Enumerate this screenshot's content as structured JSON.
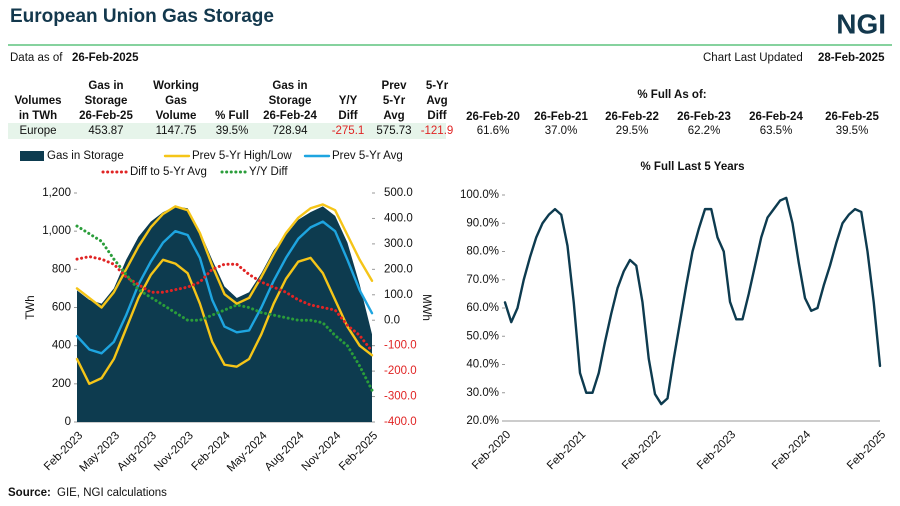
{
  "header": {
    "title": "European Union Gas Storage",
    "logo": "NGI",
    "data_as_of_label": "Data as of",
    "data_as_of": "26-Feb-2025",
    "updated_label": "Chart Last Updated",
    "updated": "28-Feb-2025"
  },
  "table": {
    "columns": [
      [
        "Volumes",
        "in TWh"
      ],
      [
        "Gas in",
        "Storage",
        "26-Feb-25"
      ],
      [
        "Working",
        "Gas",
        "Volume"
      ],
      [
        "% Full"
      ],
      [
        "Gas in",
        "Storage",
        "26-Feb-24"
      ],
      [
        "Y/Y",
        "Diff"
      ],
      [
        "Prev",
        "5-Yr",
        "Avg"
      ],
      [
        "5-Yr",
        "Avg",
        "Diff"
      ]
    ],
    "group_label": "% Full As of:",
    "group_columns": [
      "26-Feb-20",
      "26-Feb-21",
      "26-Feb-22",
      "26-Feb-23",
      "26-Feb-24",
      "26-Feb-25"
    ],
    "rows": [
      [
        "Europe",
        "453.87",
        "1147.75",
        "39.5%",
        "728.94",
        "-275.1",
        "575.73",
        "-121.9",
        "61.6%",
        "37.0%",
        "29.5%",
        "62.2%",
        "63.5%",
        "39.5%"
      ]
    ]
  },
  "chart_data": [
    {
      "type": "area-line",
      "ylabel": "TWh",
      "y2label": "MWh",
      "categories": [
        "Feb-2023",
        null,
        null,
        "May-2023",
        null,
        null,
        "Aug-2023",
        null,
        null,
        "Nov-2023",
        null,
        null,
        "Feb-2024",
        null,
        null,
        "May-2024",
        null,
        null,
        "Aug-2024",
        null,
        null,
        "Nov-2024",
        null,
        null,
        "Feb-2025"
      ],
      "ylim": [
        0,
        1200
      ],
      "yticks": [
        0,
        200,
        400,
        600,
        800,
        {
          "value": 1000,
          "label": "1,000"
        },
        {
          "value": 1200,
          "label": "1,200"
        }
      ],
      "y2lim": [
        -400,
        500
      ],
      "y2ticks": [
        {
          "value": -400,
          "label": "-400.0"
        },
        {
          "value": -300,
          "label": "-300.0"
        },
        {
          "value": -200,
          "label": "-200.0"
        },
        {
          "value": -100,
          "label": "-100.0"
        },
        {
          "value": 0,
          "label": "0.0"
        },
        {
          "value": 100,
          "label": "100.0"
        },
        {
          "value": 200,
          "label": "200.0"
        },
        {
          "value": 300,
          "label": "300.0"
        },
        {
          "value": 400,
          "label": "400.0"
        },
        {
          "value": 500,
          "label": "500.0"
        }
      ],
      "series": [
        {
          "name": "Gas in Storage",
          "color": "#0d3b4f",
          "style": "area",
          "values": [
            690,
            640,
            620,
            700,
            850,
            970,
            1050,
            1100,
            1130,
            1120,
            1000,
            850,
            710,
            650,
            680,
            780,
            900,
            980,
            1060,
            1100,
            1130,
            1080,
            940,
            720,
            460
          ]
        },
        {
          "name": "Prev 5-Yr High/Low",
          "color": "#f5c518",
          "style": "line",
          "values": [
            700,
            650,
            600,
            680,
            800,
            920,
            1020,
            1090,
            1130,
            1110,
            990,
            820,
            670,
            620,
            650,
            760,
            880,
            990,
            1070,
            1120,
            1140,
            1110,
            980,
            850,
            740
          ],
          "low": [
            330,
            200,
            230,
            330,
            490,
            650,
            770,
            850,
            830,
            780,
            620,
            420,
            300,
            290,
            330,
            460,
            620,
            750,
            840,
            860,
            780,
            640,
            500,
            400,
            350
          ]
        },
        {
          "name": "Prev 5-Yr Avg",
          "color": "#1ea5e0",
          "style": "line",
          "values": [
            450,
            380,
            360,
            420,
            560,
            720,
            840,
            940,
            1000,
            980,
            860,
            640,
            500,
            470,
            480,
            600,
            740,
            860,
            960,
            1020,
            1050,
            1000,
            850,
            690,
            570
          ]
        },
        {
          "name": "Diff to 5-Yr Avg",
          "color": "#e02424",
          "style": "dotted",
          "axis": "y2",
          "values": [
            240,
            250,
            240,
            220,
            170,
            140,
            110,
            110,
            120,
            130,
            150,
            200,
            220,
            220,
            180,
            150,
            130,
            110,
            80,
            60,
            50,
            40,
            -20,
            -60,
            -122
          ]
        },
        {
          "name": "Y/Y Diff",
          "color": "#2a9d3a",
          "style": "dotted",
          "axis": "y2",
          "values": [
            370,
            340,
            310,
            240,
            180,
            120,
            90,
            60,
            30,
            0,
            0,
            20,
            40,
            60,
            50,
            30,
            20,
            10,
            0,
            0,
            -10,
            -60,
            -100,
            -180,
            -275
          ]
        }
      ]
    },
    {
      "type": "line",
      "title": "% Full Last 5 Years",
      "color": "#0d3b4f",
      "categories": [
        "Feb-2020",
        null,
        null,
        null,
        null,
        null,
        null,
        null,
        null,
        null,
        null,
        null,
        "Feb-2021",
        null,
        null,
        null,
        null,
        null,
        null,
        null,
        null,
        null,
        null,
        null,
        "Feb-2022",
        null,
        null,
        null,
        null,
        null,
        null,
        null,
        null,
        null,
        null,
        null,
        "Feb-2023",
        null,
        null,
        null,
        null,
        null,
        null,
        null,
        null,
        null,
        null,
        null,
        "Feb-2024",
        null,
        null,
        null,
        null,
        null,
        null,
        null,
        null,
        null,
        null,
        null,
        "Feb-2025"
      ],
      "values": [
        62,
        55,
        60,
        70,
        78,
        85,
        90,
        93,
        95,
        93,
        82,
        62,
        37,
        30,
        30,
        37,
        48,
        58,
        67,
        73,
        77,
        75,
        62,
        42,
        29.5,
        26,
        28,
        42,
        55,
        68,
        80,
        88,
        95,
        95,
        85,
        80,
        62.2,
        56,
        56,
        65,
        75,
        85,
        92,
        95,
        98,
        99,
        90,
        76,
        63.5,
        59,
        60,
        68,
        75,
        83,
        90,
        93,
        95,
        94,
        80,
        62,
        39.5
      ],
      "ylim": [
        20,
        100
      ],
      "yticks": [
        {
          "value": 20,
          "label": "20.0%"
        },
        {
          "value": 30,
          "label": "30.0%"
        },
        {
          "value": 40,
          "label": "40.0%"
        },
        {
          "value": 50,
          "label": "50.0%"
        },
        {
          "value": 60,
          "label": "60.0%"
        },
        {
          "value": 70,
          "label": "70.0%"
        },
        {
          "value": 80,
          "label": "80.0%"
        },
        {
          "value": 90,
          "label": "90.0%"
        },
        {
          "value": 100,
          "label": "100.0%"
        }
      ]
    }
  ],
  "source": {
    "label": "Source:",
    "text": "GIE, NGI calculations"
  }
}
